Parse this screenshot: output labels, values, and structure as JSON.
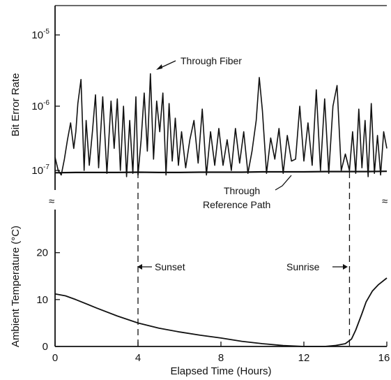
{
  "chart_data": [
    {
      "type": "line",
      "ylabel": "Bit Error Rate",
      "yscale": "log",
      "ylim": [
        7.5e-08,
        2.5e-05
      ],
      "yticks": [
        {
          "base": "10",
          "exp": "-7"
        },
        {
          "base": "10",
          "exp": "-6"
        },
        {
          "base": "10",
          "exp": "-5"
        }
      ],
      "xlim": [
        0,
        16
      ],
      "annotations": [
        "Through Fiber",
        "Through",
        "Reference Path"
      ],
      "series": [
        {
          "name": "Through Fiber",
          "x": [
            0.0,
            0.15,
            0.3,
            0.45,
            0.6,
            0.75,
            0.9,
            1.0,
            1.1,
            1.25,
            1.4,
            1.5,
            1.65,
            1.8,
            1.95,
            2.1,
            2.3,
            2.5,
            2.7,
            2.85,
            3.0,
            3.15,
            3.3,
            3.45,
            3.6,
            3.75,
            3.9,
            4.0,
            4.15,
            4.3,
            4.45,
            4.6,
            4.75,
            4.9,
            5.05,
            5.2,
            5.35,
            5.5,
            5.65,
            5.8,
            5.95,
            6.1,
            6.3,
            6.5,
            6.7,
            6.9,
            7.1,
            7.3,
            7.5,
            7.7,
            7.9,
            8.1,
            8.3,
            8.5,
            8.7,
            8.9,
            9.1,
            9.3,
            9.5,
            9.7,
            9.85,
            10.0,
            10.2,
            10.4,
            10.6,
            10.8,
            11.0,
            11.2,
            11.4,
            11.6,
            11.8,
            12.0,
            12.2,
            12.4,
            12.6,
            12.8,
            13.0,
            13.2,
            13.4,
            13.6,
            13.8,
            14.0,
            14.2,
            14.35,
            14.5,
            14.65,
            14.8,
            14.95,
            15.1,
            15.25,
            15.4,
            15.55,
            15.7,
            15.85,
            16.0
          ],
          "y": [
            1.6e-07,
            1e-07,
            8.5e-08,
            1.5e-07,
            3e-07,
            5.5e-07,
            2.2e-07,
            4e-07,
            1.1e-06,
            2.6e-06,
            1e-07,
            6e-07,
            1.2e-07,
            4e-07,
            1.5e-06,
            1.1e-07,
            1.4e-06,
            9e-08,
            1.2e-06,
            2.2e-07,
            1.3e-06,
            1e-07,
            1e-06,
            8e-08,
            6e-07,
            9e-08,
            1.4e-06,
            8.5e-08,
            3e-07,
            1.6e-06,
            2e-07,
            3.2e-06,
            1.5e-07,
            1.2e-06,
            4e-07,
            1.6e-06,
            8.5e-08,
            1.1e-06,
            1.4e-07,
            6.5e-07,
            1.2e-07,
            4e-07,
            1.1e-07,
            3e-07,
            6e-07,
            1.3e-07,
            9e-07,
            8.5e-08,
            4e-07,
            1.2e-07,
            4.5e-07,
            1.2e-07,
            3e-07,
            1e-07,
            4.5e-07,
            1.3e-07,
            4e-07,
            9e-08,
            2e-07,
            6e-07,
            2.8e-06,
            8.5e-07,
            9e-08,
            3.2e-07,
            1.5e-07,
            4.5e-07,
            9e-08,
            3.5e-07,
            1.4e-07,
            1.5e-07,
            1e-06,
            1.4e-07,
            5.5e-07,
            1.2e-07,
            1.8e-06,
            1e-07,
            1.3e-06,
            9e-08,
            1e-06,
            2.1e-06,
            1e-07,
            1.8e-07,
            1e-07,
            4e-07,
            9e-08,
            9e-07,
            1.1e-07,
            6e-07,
            8e-08,
            1.1e-06,
            9e-08,
            3.5e-07,
            8.5e-08,
            4e-07,
            2.2e-07
          ]
        },
        {
          "name": "Through Reference Path",
          "x": [
            0,
            1,
            2,
            3,
            4,
            5,
            6,
            7,
            8,
            9,
            10,
            11,
            12,
            13,
            14,
            15,
            16
          ],
          "y": [
            9.2e-08,
            9.3e-08,
            9.3e-08,
            9.3e-08,
            9.4e-08,
            9.3e-08,
            9.3e-08,
            9.4e-08,
            9.4e-08,
            9.4e-08,
            9.5e-08,
            9.5e-08,
            9.5e-08,
            9.6e-08,
            9.6e-08,
            9.6e-08,
            9.7e-08
          ]
        }
      ]
    },
    {
      "type": "line",
      "xlabel": "Elapsed Time (Hours)",
      "ylabel": "Ambient Temperature (°C)",
      "xlim": [
        0,
        16
      ],
      "ylim": [
        0,
        28
      ],
      "xticks": [
        "0",
        "4",
        "8",
        "12",
        "16"
      ],
      "yticks": [
        "0",
        "10",
        "20"
      ],
      "annotations": [
        "Sunset",
        "Sunrise"
      ],
      "markers": [
        {
          "label": "Sunset",
          "x": 4.0
        },
        {
          "label": "Sunrise",
          "x": 14.2
        }
      ],
      "series": [
        {
          "name": "Ambient Temperature",
          "x": [
            0,
            0.5,
            1,
            2,
            3,
            4,
            5,
            6,
            7,
            8,
            9,
            10,
            11,
            12,
            13,
            13.5,
            14,
            14.3,
            14.5,
            14.8,
            15,
            15.3,
            15.6,
            16
          ],
          "y": [
            11.2,
            10.8,
            10.0,
            8.2,
            6.5,
            5.0,
            3.9,
            3.1,
            2.4,
            1.8,
            1.1,
            0.6,
            0.2,
            0.0,
            0.0,
            0.2,
            0.6,
            1.6,
            3.5,
            7.0,
            9.5,
            11.8,
            13.2,
            14.6
          ]
        }
      ]
    }
  ]
}
